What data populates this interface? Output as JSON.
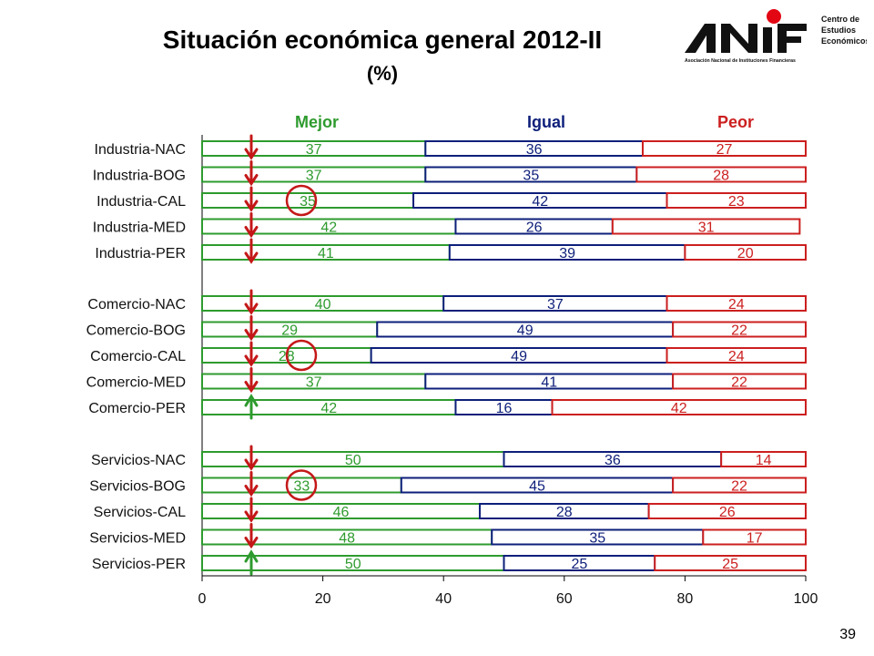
{
  "title": "Situación económica general 2012-II",
  "subtitle": "(%)",
  "page_number": "39",
  "logo": {
    "main": "ANIF",
    "tagline": "Asociación Nacional de Instituciones Financieras",
    "side_text": [
      "Centro de",
      "Estudios",
      "Económicos"
    ],
    "accent_color": "#e30613"
  },
  "colors": {
    "mejor": "#2e9b2e",
    "igual": "#0d1f7a",
    "peor": "#cc1f1f",
    "arrow": "#c41818",
    "circle": "#c41818"
  },
  "chart_data": {
    "type": "bar",
    "orientation": "horizontal",
    "stacked": true,
    "series_headers": [
      "Mejor",
      "Igual",
      "Peor"
    ],
    "xlim": [
      0,
      100
    ],
    "xticks": [
      "0",
      "20",
      "40",
      "60",
      "80",
      "100"
    ],
    "groups": [
      {
        "rows": [
          {
            "label": "Industria-NAC",
            "values": [
              37,
              36,
              27
            ],
            "arrow": "down",
            "circled": false
          },
          {
            "label": "Industria-BOG",
            "values": [
              37,
              35,
              28
            ],
            "arrow": "down",
            "circled": false
          },
          {
            "label": "Industria-CAL",
            "values": [
              35,
              42,
              23
            ],
            "arrow": "down",
            "circled": true
          },
          {
            "label": "Industria-MED",
            "values": [
              42,
              26,
              31
            ],
            "arrow": "down",
            "circled": false
          },
          {
            "label": "Industria-PER",
            "values": [
              41,
              39,
              20
            ],
            "arrow": "down",
            "circled": false
          }
        ]
      },
      {
        "rows": [
          {
            "label": "Comercio-NAC",
            "values": [
              40,
              37,
              24
            ],
            "arrow": "down",
            "circled": false
          },
          {
            "label": "Comercio-BOG",
            "values": [
              29,
              49,
              22
            ],
            "arrow": "down",
            "circled": false
          },
          {
            "label": "Comercio-CAL",
            "values": [
              28,
              49,
              24
            ],
            "arrow": "down",
            "circled": true
          },
          {
            "label": "Comercio-MED",
            "values": [
              37,
              41,
              22
            ],
            "arrow": "down",
            "circled": false
          },
          {
            "label": "Comercio-PER",
            "values": [
              42,
              16,
              42
            ],
            "arrow": "up",
            "circled": false
          }
        ]
      },
      {
        "rows": [
          {
            "label": "Servicios-NAC",
            "values": [
              50,
              36,
              14
            ],
            "arrow": "down",
            "circled": false
          },
          {
            "label": "Servicios-BOG",
            "values": [
              33,
              45,
              22
            ],
            "arrow": "down",
            "circled": true
          },
          {
            "label": "Servicios-CAL",
            "values": [
              46,
              28,
              26
            ],
            "arrow": "down",
            "circled": false
          },
          {
            "label": "Servicios-MED",
            "values": [
              48,
              35,
              17
            ],
            "arrow": "down",
            "circled": false
          },
          {
            "label": "Servicios-PER",
            "values": [
              50,
              25,
              25
            ],
            "arrow": "up",
            "circled": false
          }
        ]
      }
    ]
  }
}
